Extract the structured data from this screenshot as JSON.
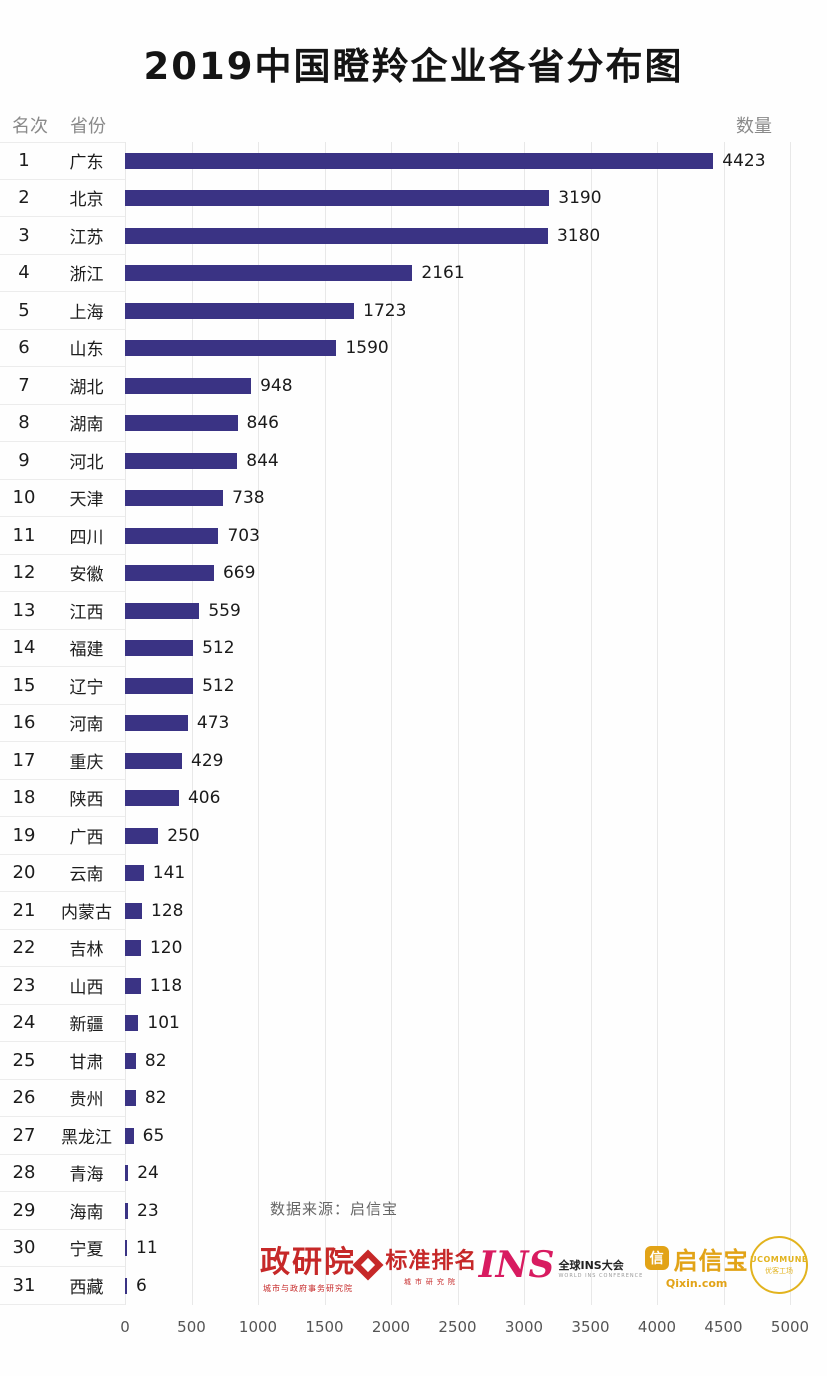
{
  "title": "2019中国瞪羚企业各省分布图",
  "header": {
    "rank": "名次",
    "province": "省份",
    "count": "数量"
  },
  "source": "数据来源：启信宝",
  "chart_data": {
    "type": "bar",
    "orientation": "horizontal",
    "title": "2019中国瞪羚企业各省分布图",
    "ranks": [
      1,
      2,
      3,
      4,
      5,
      6,
      7,
      8,
      9,
      10,
      11,
      12,
      13,
      14,
      15,
      16,
      17,
      18,
      19,
      20,
      21,
      22,
      23,
      24,
      25,
      26,
      27,
      28,
      29,
      30,
      31
    ],
    "categories": [
      "广东",
      "北京",
      "江苏",
      "浙江",
      "上海",
      "山东",
      "湖北",
      "湖南",
      "河北",
      "天津",
      "四川",
      "安徽",
      "江西",
      "福建",
      "辽宁",
      "河南",
      "重庆",
      "陕西",
      "广西",
      "云南",
      "内蒙古",
      "吉林",
      "山西",
      "新疆",
      "甘肃",
      "贵州",
      "黑龙江",
      "青海",
      "海南",
      "宁夏",
      "西藏"
    ],
    "values": [
      4423,
      3190,
      3180,
      2161,
      1723,
      1590,
      948,
      846,
      844,
      738,
      703,
      669,
      559,
      512,
      512,
      473,
      429,
      406,
      250,
      141,
      128,
      120,
      118,
      101,
      82,
      82,
      65,
      24,
      23,
      11,
      6
    ],
    "xlabel": "",
    "ylabel": "",
    "xlim": [
      0,
      5000
    ],
    "xticks": [
      0,
      500,
      1000,
      1500,
      2000,
      2500,
      3000,
      3500,
      4000,
      4500,
      5000
    ],
    "grid": "vertical",
    "legend": "none",
    "bar_color": "#3a3384"
  },
  "colors": {
    "bar": "#3a3384",
    "grid": "#e8e8e8",
    "accent_red": "#c62828",
    "accent_magenta": "#d81b60",
    "accent_gold": "#e2a317"
  },
  "logos": [
    {
      "name": "政研院",
      "sub": "城市与政府事务研究院"
    },
    {
      "name": "标准排名",
      "sub": "城市研究院"
    },
    {
      "name": "INS",
      "sub": "全球INS大会",
      "sub2": "WORLD INS CONFERENCE"
    },
    {
      "name": "启信宝",
      "sub": "Qixin.com"
    },
    {
      "name": "UCOMMUNE",
      "sub": "优客工场"
    }
  ]
}
